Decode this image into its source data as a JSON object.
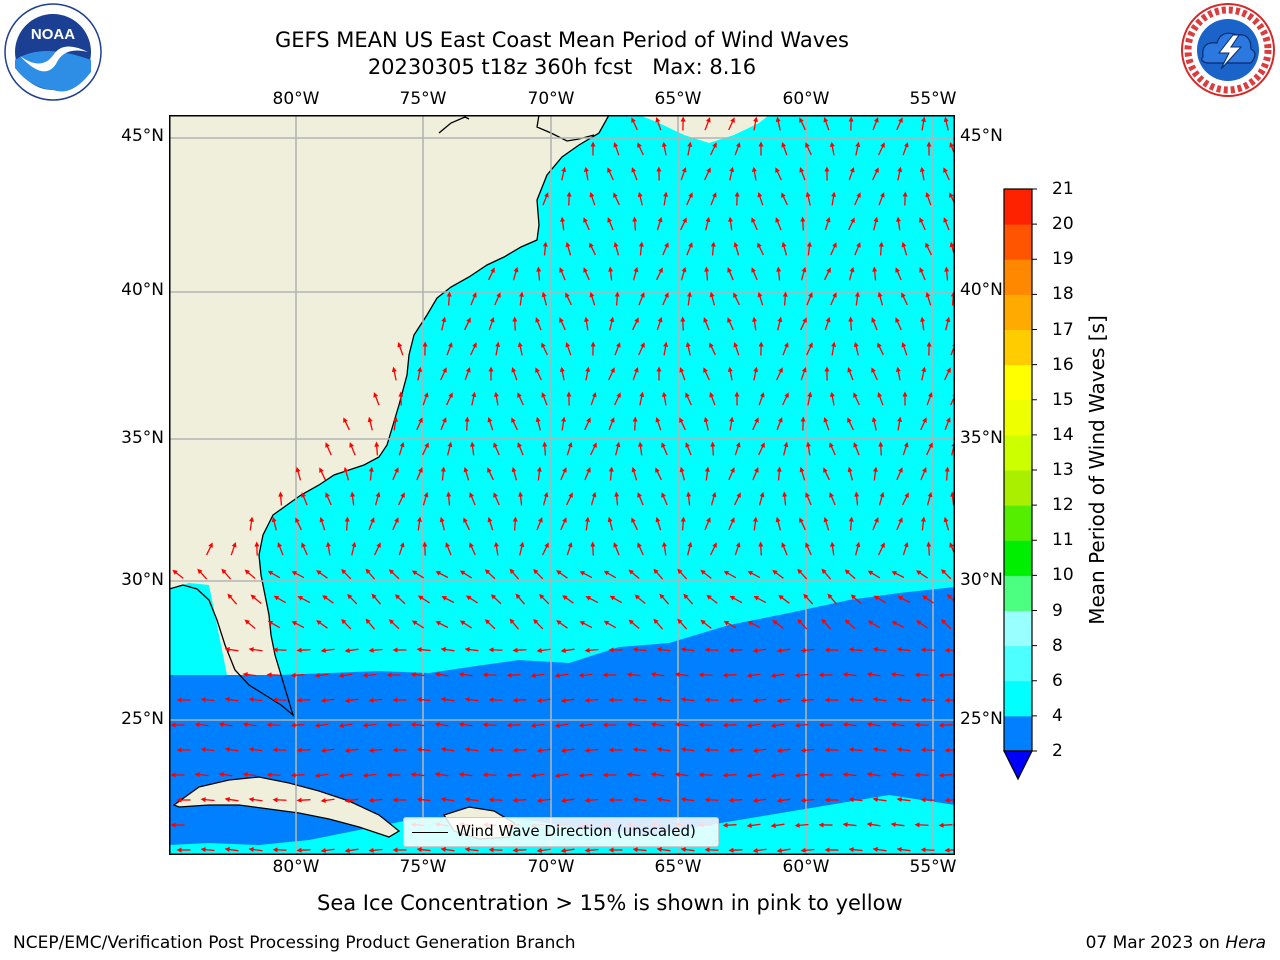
{
  "header": {
    "title_line1": "GEFS MEAN US East Coast Mean Period of Wind Waves",
    "title_line2": "20230305 t18z 360h fcst   Max: 8.16"
  },
  "logos": {
    "noaa": {
      "icon": "noaa-logo",
      "text": "NOAA"
    },
    "nws": {
      "icon": "national-weather-service-logo"
    }
  },
  "map": {
    "lon_labels": [
      "80°W",
      "75°W",
      "70°W",
      "65°W",
      "60°W",
      "55°W"
    ],
    "lat_labels": [
      "45°N",
      "40°N",
      "35°N",
      "30°N",
      "25°N"
    ],
    "extent": {
      "lon_min": -85,
      "lon_max": -54.2,
      "lat_min": 20.3,
      "lat_max": 45.8
    },
    "land_color": "#efefdc",
    "ocean_color": "#00ffff",
    "arrow_color": "#ff0000",
    "grid_color": "#b3b3b3",
    "legend_label": "Wind Wave Direction (unscaled)"
  },
  "colorbar": {
    "title": "Mean Period of Wind Waves [s]",
    "ticks": [
      "2",
      "4",
      "6",
      "8",
      "9",
      "10",
      "11",
      "12",
      "13",
      "14",
      "15",
      "16",
      "17",
      "18",
      "19",
      "20",
      "21"
    ],
    "colors": [
      "#0080ff",
      "#00ffff",
      "#4dffff",
      "#99ffff",
      "#4dff80",
      "#00ee00",
      "#55ee00",
      "#aaee00",
      "#ccff00",
      "#eeff00",
      "#ffff00",
      "#ffcc00",
      "#ffaa00",
      "#ff8800",
      "#ff5500",
      "#ff2200"
    ],
    "under_color": "#0000ff",
    "extend": "min"
  },
  "caption": "Sea Ice Concentration > 15% is shown in pink to yellow",
  "footer": {
    "left": "NCEP/EMC/Verification Post Processing Product Generation Branch",
    "date": "07 Mar 2023 on",
    "machine": "Hera"
  }
}
